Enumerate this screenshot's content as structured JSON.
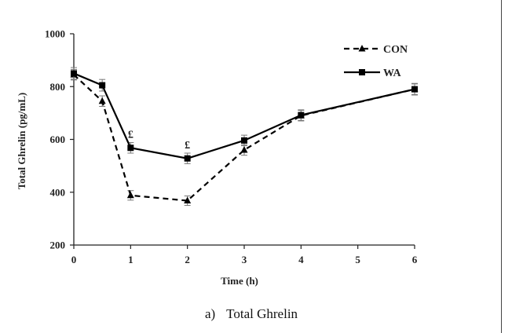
{
  "chart_data": {
    "type": "line",
    "title": "",
    "xlabel": "Time (h)",
    "ylabel": "Total Ghrelin (pg/mL)",
    "xlim": [
      0,
      6
    ],
    "ylim": [
      200,
      1000
    ],
    "x_ticks": [
      0,
      1,
      2,
      3,
      4,
      5,
      6
    ],
    "y_ticks": [
      200,
      400,
      600,
      800,
      1000
    ],
    "grid": false,
    "legend_position": "top-right",
    "series": [
      {
        "name": "CON",
        "style": "dashed",
        "marker": "triangle",
        "x": [
          0,
          0.5,
          1,
          2,
          3,
          4,
          6
        ],
        "values": [
          845,
          745,
          388,
          368,
          560,
          690,
          790
        ],
        "error": [
          20,
          20,
          18,
          18,
          20,
          20,
          20
        ]
      },
      {
        "name": "WA",
        "style": "solid",
        "marker": "square",
        "x": [
          0,
          0.5,
          1,
          2,
          3,
          4,
          6
        ],
        "values": [
          850,
          805,
          568,
          528,
          596,
          692,
          790
        ],
        "error": [
          22,
          22,
          20,
          20,
          20,
          20,
          22
        ]
      }
    ],
    "annotations": [
      {
        "text": "£",
        "x": 1
      },
      {
        "text": "£",
        "x": 2
      }
    ],
    "caption_label": "a)",
    "caption_text": "Total Ghrelin",
    "colors": {
      "lines": "#000000",
      "errors": "#777777"
    }
  }
}
